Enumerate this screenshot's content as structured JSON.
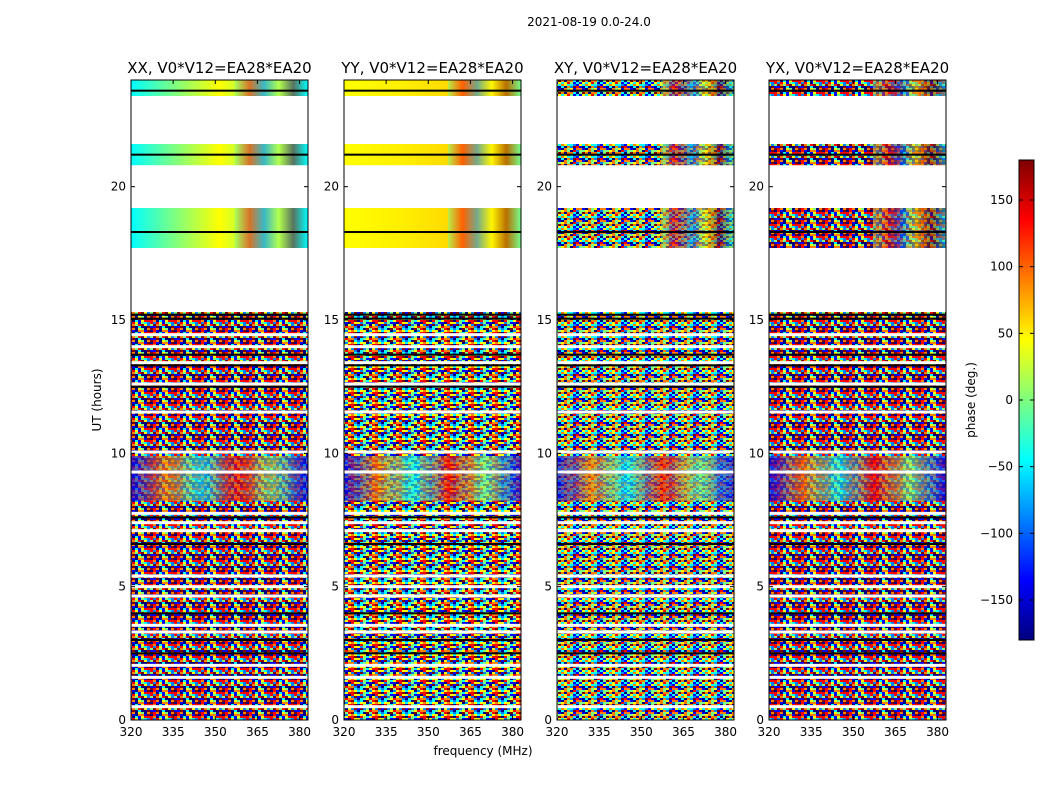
{
  "chart_data": {
    "type": "heatmap",
    "suptitle": "2021-08-19 0.0-24.0",
    "xlabel": "frequency (MHz)",
    "ylabel": "UT (hours)",
    "xlim": [
      320,
      383
    ],
    "ylim": [
      0,
      24
    ],
    "xticks": [
      "320",
      "335",
      "350",
      "365",
      "380"
    ],
    "yticks": [
      "0",
      "5",
      "10",
      "15",
      "20"
    ],
    "panels": [
      {
        "title": "XX, V0*V12=EA28*EA20",
        "polarization": "XX"
      },
      {
        "title": "YY, V0*V12=EA28*EA20",
        "polarization": "YY"
      },
      {
        "title": "XY, V0*V12=EA28*EA20",
        "polarization": "XY"
      },
      {
        "title": "YX, V0*V12=EA28*EA20",
        "polarization": "YX"
      }
    ],
    "colorbar": {
      "label": "phase (deg.)",
      "range": [
        -180,
        180
      ],
      "ticks": [
        "150",
        "100",
        "50",
        "0",
        "−50",
        "−100",
        "−150"
      ],
      "colormap": "jet"
    },
    "data_gaps_hours": [
      [
        15.3,
        17.7
      ],
      [
        19.2,
        20.8
      ],
      [
        21.6,
        23.4
      ]
    ]
  }
}
